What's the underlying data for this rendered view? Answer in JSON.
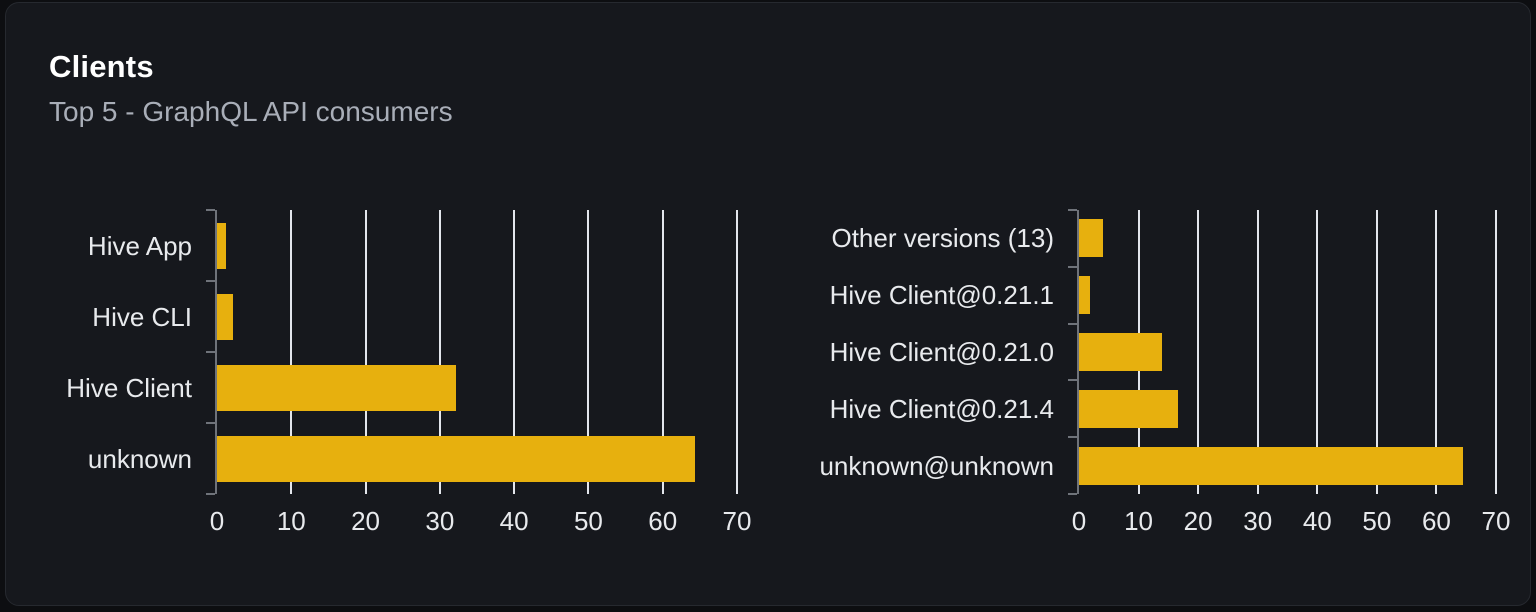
{
  "card": {
    "title": "Clients",
    "subtitle": "Top 5 - GraphQL API consumers"
  },
  "colors": {
    "page_bg": "#0d0e11",
    "card_bg": "#16181d",
    "card_border": "#26292f",
    "title": "#ffffff",
    "subtitle": "#a9aeb8",
    "label": "#e8eaed",
    "bar": "#e7b00e",
    "grid": "#e3e6ec",
    "axis": "#6f737a"
  },
  "chart_data": [
    {
      "type": "bar",
      "orientation": "horizontal",
      "categories": [
        "Hive App",
        "Hive CLI",
        "Hive Client",
        "unknown"
      ],
      "values": [
        1.2,
        2.1,
        32.2,
        64.3
      ],
      "xticks": [
        0,
        10,
        20,
        30,
        40,
        50,
        60,
        70
      ],
      "xlim": [
        0,
        70
      ],
      "grid": true,
      "legend": false
    },
    {
      "type": "bar",
      "orientation": "horizontal",
      "categories": [
        "Other versions (13)",
        "Hive Client@0.21.1",
        "Hive Client@0.21.0",
        "Hive Client@0.21.4",
        "unknown@unknown"
      ],
      "values": [
        4.0,
        1.8,
        13.9,
        16.6,
        64.4
      ],
      "xticks": [
        0,
        10,
        20,
        30,
        40,
        50,
        60,
        70
      ],
      "xlim": [
        0,
        70
      ],
      "grid": true,
      "legend": false
    }
  ]
}
